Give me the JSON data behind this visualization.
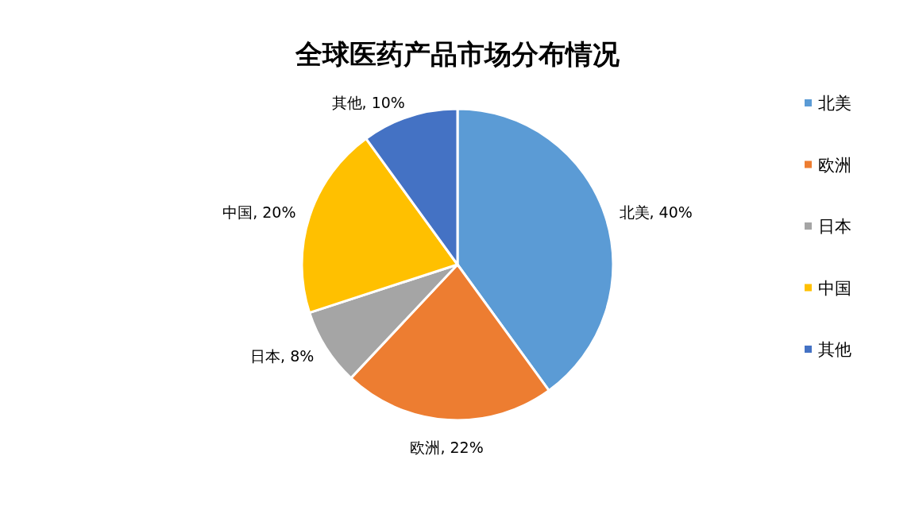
{
  "chart_data": {
    "type": "pie",
    "title": "全球医药产品市场分布情况",
    "categories": [
      "北美",
      "欧洲",
      "日本",
      "中国",
      "其他"
    ],
    "values": [
      40,
      22,
      8,
      20,
      10
    ],
    "colors": [
      "#5b9bd5",
      "#ed7d31",
      "#a5a5a5",
      "#ffc000",
      "#4472c4"
    ],
    "value_labels": [
      "北美, 40%",
      "欧洲, 22%",
      "日本, 8%",
      "中国, 20%",
      "其他, 10%"
    ],
    "legend": "right"
  }
}
